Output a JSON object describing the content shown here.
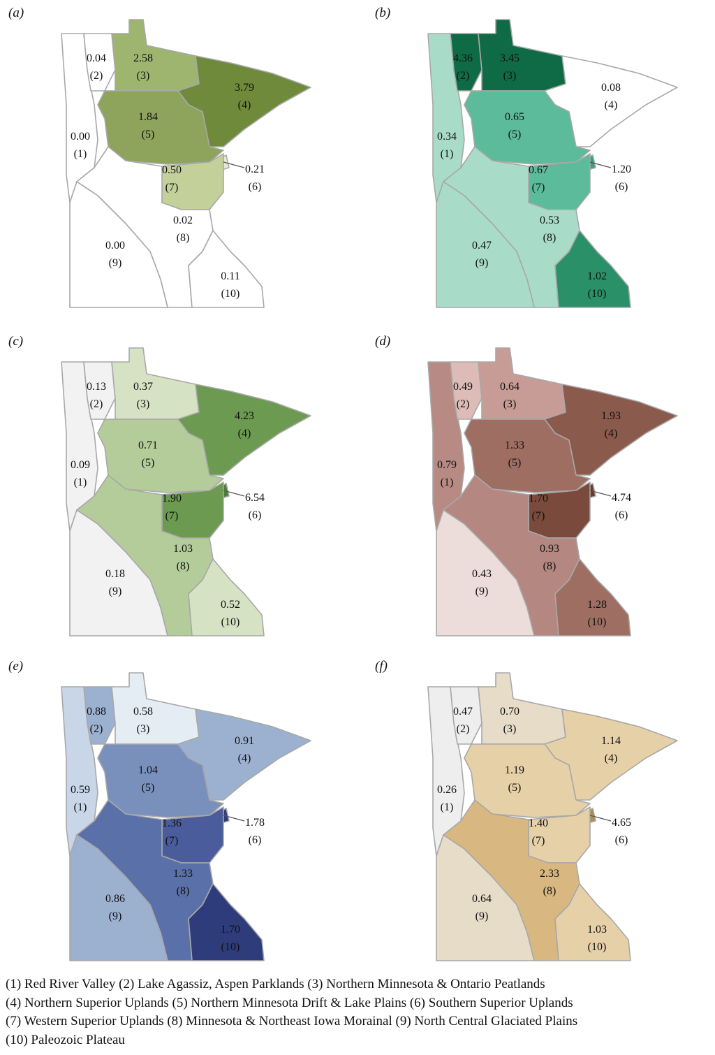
{
  "panels": [
    {
      "label": "(a)",
      "regions": [
        {
          "id": "(1)",
          "value": "0.00",
          "color": "#ffffff"
        },
        {
          "id": "(2)",
          "value": "0.04",
          "color": "#ffffff"
        },
        {
          "id": "(3)",
          "value": "2.58",
          "color": "#9db56f"
        },
        {
          "id": "(4)",
          "value": "3.79",
          "color": "#6f8a3a"
        },
        {
          "id": "(5)",
          "value": "1.84",
          "color": "#8ea35c"
        },
        {
          "id": "(6)",
          "value": "0.21",
          "color": "#e4ead4"
        },
        {
          "id": "(7)",
          "value": "0.50",
          "color": "#c4d09a"
        },
        {
          "id": "(8)",
          "value": "0.02",
          "color": "#ffffff"
        },
        {
          "id": "(9)",
          "value": "0.00",
          "color": "#ffffff"
        },
        {
          "id": "(10)",
          "value": "0.11",
          "color": "#ffffff"
        }
      ]
    },
    {
      "label": "(b)",
      "regions": [
        {
          "id": "(1)",
          "value": "0.34",
          "color": "#a8dcc8"
        },
        {
          "id": "(2)",
          "value": "4.36",
          "color": "#0f6b45"
        },
        {
          "id": "(3)",
          "value": "3.45",
          "color": "#0f6b45"
        },
        {
          "id": "(4)",
          "value": "0.08",
          "color": "#ffffff"
        },
        {
          "id": "(5)",
          "value": "0.65",
          "color": "#5cbb9a"
        },
        {
          "id": "(6)",
          "value": "1.20",
          "color": "#3aa07c"
        },
        {
          "id": "(7)",
          "value": "0.67",
          "color": "#5cbb9a"
        },
        {
          "id": "(8)",
          "value": "0.53",
          "color": "#a8dcc8"
        },
        {
          "id": "(9)",
          "value": "0.47",
          "color": "#a8dcc8"
        },
        {
          "id": "(10)",
          "value": "1.02",
          "color": "#2a9068"
        }
      ]
    },
    {
      "label": "(c)",
      "regions": [
        {
          "id": "(1)",
          "value": "0.09",
          "color": "#f2f2f2"
        },
        {
          "id": "(2)",
          "value": "0.13",
          "color": "#f2f2f2"
        },
        {
          "id": "(3)",
          "value": "0.37",
          "color": "#d6e2c4"
        },
        {
          "id": "(4)",
          "value": "4.23",
          "color": "#6b9a50"
        },
        {
          "id": "(5)",
          "value": "0.71",
          "color": "#b4cc9a"
        },
        {
          "id": "(6)",
          "value": "6.54",
          "color": "#4c7e3a"
        },
        {
          "id": "(7)",
          "value": "1.90",
          "color": "#6b9a50"
        },
        {
          "id": "(8)",
          "value": "1.03",
          "color": "#b4cc9a"
        },
        {
          "id": "(9)",
          "value": "0.18",
          "color": "#f2f2f2"
        },
        {
          "id": "(10)",
          "value": "0.52",
          "color": "#d6e2c4"
        }
      ]
    },
    {
      "label": "(d)",
      "regions": [
        {
          "id": "(1)",
          "value": "0.79",
          "color": "#b88a84"
        },
        {
          "id": "(2)",
          "value": "0.49",
          "color": "#ddbcb8"
        },
        {
          "id": "(3)",
          "value": "0.64",
          "color": "#c89c96"
        },
        {
          "id": "(4)",
          "value": "1.93",
          "color": "#8a5a4c"
        },
        {
          "id": "(5)",
          "value": "1.33",
          "color": "#9e6e62"
        },
        {
          "id": "(6)",
          "value": "4.74",
          "color": "#6a3a30"
        },
        {
          "id": "(7)",
          "value": "1.70",
          "color": "#7a4a3c"
        },
        {
          "id": "(8)",
          "value": "0.93",
          "color": "#b48880"
        },
        {
          "id": "(9)",
          "value": "0.43",
          "color": "#ecdcda"
        },
        {
          "id": "(10)",
          "value": "1.28",
          "color": "#9e6e62"
        }
      ]
    },
    {
      "label": "(e)",
      "regions": [
        {
          "id": "(1)",
          "value": "0.59",
          "color": "#c8d6e8"
        },
        {
          "id": "(2)",
          "value": "0.88",
          "color": "#9cb0d0"
        },
        {
          "id": "(3)",
          "value": "0.58",
          "color": "#e4ecf4"
        },
        {
          "id": "(4)",
          "value": "0.91",
          "color": "#9cb0d0"
        },
        {
          "id": "(5)",
          "value": "1.04",
          "color": "#7a90bc"
        },
        {
          "id": "(6)",
          "value": "1.78",
          "color": "#2e3c7c"
        },
        {
          "id": "(7)",
          "value": "1.36",
          "color": "#4a5c9c"
        },
        {
          "id": "(8)",
          "value": "1.33",
          "color": "#5a70a8"
        },
        {
          "id": "(9)",
          "value": "0.86",
          "color": "#9cb0d0"
        },
        {
          "id": "(10)",
          "value": "1.70",
          "color": "#2e3c7c"
        }
      ]
    },
    {
      "label": "(f)",
      "regions": [
        {
          "id": "(1)",
          "value": "0.26",
          "color": "#eeeeee"
        },
        {
          "id": "(2)",
          "value": "0.47",
          "color": "#eeeeee"
        },
        {
          "id": "(3)",
          "value": "0.70",
          "color": "#e6dcc8"
        },
        {
          "id": "(4)",
          "value": "1.14",
          "color": "#e6d0a8"
        },
        {
          "id": "(5)",
          "value": "1.19",
          "color": "#e6d0a8"
        },
        {
          "id": "(6)",
          "value": "4.65",
          "color": "#b08c50"
        },
        {
          "id": "(7)",
          "value": "1.40",
          "color": "#e6d0a8"
        },
        {
          "id": "(8)",
          "value": "2.33",
          "color": "#d8b880"
        },
        {
          "id": "(9)",
          "value": "0.64",
          "color": "#e6dcc8"
        },
        {
          "id": "(10)",
          "value": "1.03",
          "color": "#e6d0a8"
        }
      ]
    }
  ],
  "caption": [
    "(1) Red River Valley (2) Lake Agassiz, Aspen Parklands (3) Northern Minnesota & Ontario Peatlands",
    " (4) Northern Superior Uplands (5) Northern Minnesota Drift & Lake Plains (6) Southern Superior Uplands",
    "(7) Western Superior Uplands (8) Minnesota & Northeast Iowa Morainal (9) North Central Glaciated Plains",
    "(10) Paleozoic Plateau"
  ]
}
